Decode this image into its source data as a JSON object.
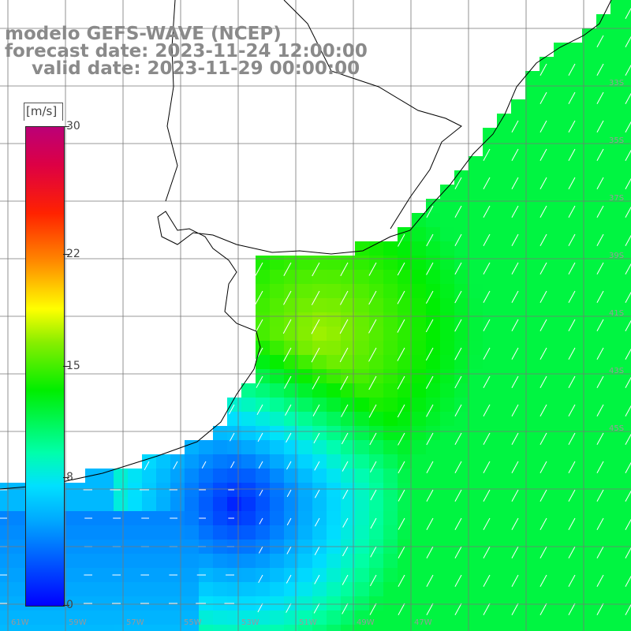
{
  "title": {
    "line1": "modelo GEFS-WAVE (NCEP)",
    "line2": "forecast date: 2023-11-24 12:00:00",
    "line3": "valid date: 2023-11-29 00:00:00"
  },
  "colorbar": {
    "unit": "[m/s]",
    "ticks": [
      {
        "label": "0",
        "value": 0
      },
      {
        "label": "8",
        "value": 8
      },
      {
        "label": "15",
        "value": 15
      },
      {
        "label": "22",
        "value": 22
      },
      {
        "label": "30",
        "value": 30
      }
    ],
    "range": [
      0,
      30
    ]
  },
  "map": {
    "variable": "wind speed and direction",
    "land_color": "#ffffff",
    "grid": true,
    "longitude_labels": [
      "61W",
      "59W",
      "57W",
      "55W",
      "53W",
      "51W",
      "49W",
      "47W"
    ],
    "latitude_labels": [
      "33S",
      "35S",
      "37S",
      "39S",
      "41S",
      "43S",
      "45S"
    ]
  }
}
